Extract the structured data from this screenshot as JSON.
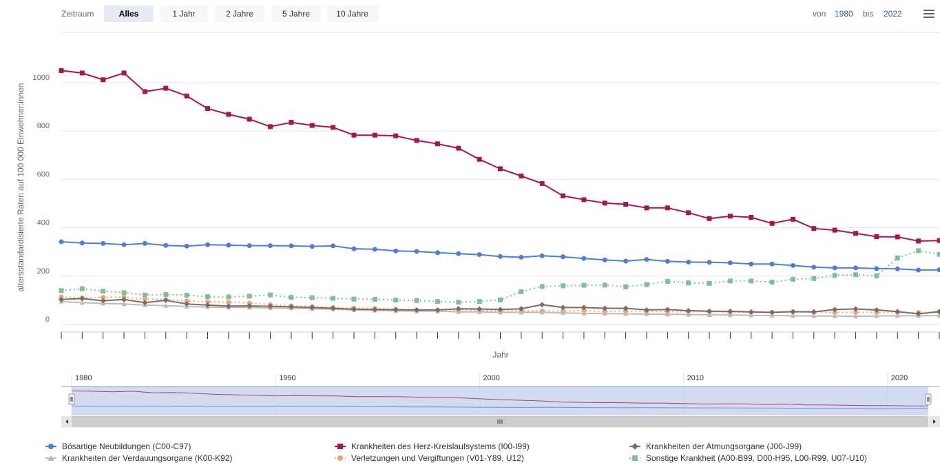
{
  "zoom": {
    "label": "Zeitraum",
    "buttons": [
      "Alles",
      "1 Jahr",
      "2 Jahre",
      "5 Jahre",
      "10 Jahre"
    ],
    "active": "Alles"
  },
  "range": {
    "from_label": "von",
    "from_value": "1980",
    "to_label": "bis",
    "to_value": "2022"
  },
  "colors": {
    "bn": "#4a7fd9",
    "hk": "#a8164a",
    "at": "#7f6a62",
    "vd": "#bbbbbb",
    "vv": "#f0a46b",
    "so": "#7fbf9a",
    "navigator_fill": "#c4cfeb",
    "navigator_border": "#8fa1d3"
  },
  "chart_data": {
    "type": "line",
    "xlabel": "Jahr",
    "ylabel": "altersstandardisierte Raten auf 100 000 Einwohner:innen",
    "ylim": [
      0,
      1100
    ],
    "yticks": [
      0,
      200,
      400,
      600,
      800,
      1000
    ],
    "xlim": [
      1980,
      2022
    ],
    "navigator_ticks": [
      1980,
      1990,
      2000,
      2010,
      2020
    ],
    "legend_position": "bottom",
    "x": [
      1980,
      1981,
      1982,
      1983,
      1984,
      1985,
      1986,
      1987,
      1988,
      1989,
      1990,
      1991,
      1992,
      1993,
      1994,
      1995,
      1996,
      1997,
      1998,
      1999,
      2000,
      2001,
      2002,
      2003,
      2004,
      2005,
      2006,
      2007,
      2008,
      2009,
      2010,
      2011,
      2012,
      2013,
      2014,
      2015,
      2016,
      2017,
      2018,
      2019,
      2020,
      2021,
      2022
    ],
    "series": [
      {
        "key": "bn",
        "name": "Bösartige Neubildungen (C00-C97)",
        "marker": "circle",
        "dash": "solid",
        "values": [
          342,
          337,
          335,
          330,
          335,
          327,
          324,
          330,
          328,
          326,
          326,
          325,
          323,
          325,
          313,
          311,
          304,
          302,
          297,
          293,
          289,
          281,
          278,
          284,
          280,
          273,
          267,
          262,
          269,
          261,
          258,
          257,
          255,
          250,
          250,
          244,
          237,
          234,
          234,
          231,
          230,
          225,
          226
        ]
      },
      {
        "key": "hk",
        "name": "Krankheiten des Herz-Kreislaufsystems (I00-I99)",
        "marker": "square",
        "dash": "solid",
        "values": [
          1050,
          1040,
          1012,
          1040,
          963,
          977,
          945,
          893,
          869,
          849,
          818,
          836,
          823,
          815,
          783,
          783,
          780,
          761,
          747,
          729,
          683,
          644,
          614,
          583,
          532,
          516,
          502,
          497,
          482,
          482,
          462,
          438,
          448,
          443,
          418,
          435,
          397,
          390,
          377,
          363,
          362,
          345,
          347
        ]
      },
      {
        "key": "at",
        "name": "Krankheiten der Atmungsorgane (J00-J99)",
        "marker": "diamond",
        "dash": "solid",
        "values": [
          103,
          107,
          98,
          103,
          90,
          100,
          85,
          80,
          76,
          77,
          75,
          73,
          70,
          67,
          63,
          62,
          61,
          60,
          60,
          65,
          64,
          62,
          65,
          82,
          70,
          70,
          67,
          67,
          60,
          62,
          57,
          55,
          54,
          52,
          50,
          53,
          52,
          62,
          64,
          60,
          53,
          44,
          53
        ]
      },
      {
        "key": "vd",
        "name": "Krankheiten der Verdauungsorgane (K00-K92)",
        "marker": "triangle",
        "dash": "solid",
        "values": [
          95,
          90,
          87,
          85,
          80,
          78,
          74,
          72,
          70,
          70,
          68,
          67,
          65,
          63,
          60,
          58,
          56,
          55,
          55,
          52,
          52,
          50,
          50,
          50,
          48,
          46,
          45,
          44,
          43,
          42,
          41,
          40,
          39,
          38,
          37,
          36,
          35,
          35,
          34,
          35,
          36,
          36,
          37
        ]
      },
      {
        "key": "vv",
        "name": "Verletzungen und Vergiftungen (V01-Y89, U12)",
        "marker": "circle",
        "dash": "dot",
        "values": [
          114,
          110,
          112,
          113,
          105,
          103,
          97,
          94,
          92,
          88,
          82,
          77,
          74,
          70,
          68,
          66,
          63,
          60,
          59,
          60,
          58,
          56,
          56,
          56,
          55,
          57,
          54,
          55,
          54,
          53,
          53,
          52,
          51,
          50,
          50,
          51,
          50,
          50,
          50,
          50,
          50,
          49,
          52
        ]
      },
      {
        "key": "so",
        "name": "Sonstige Krankheit (A00-B99, D00-H95, L00-R99, U07-U10)",
        "marker": "square",
        "dash": "dot",
        "values": [
          140,
          148,
          138,
          132,
          122,
          124,
          121,
          115,
          114,
          117,
          122,
          112,
          111,
          108,
          105,
          104,
          101,
          99,
          95,
          92,
          95,
          102,
          136,
          157,
          160,
          162,
          163,
          156,
          165,
          178,
          172,
          170,
          180,
          180,
          175,
          187,
          190,
          203,
          206,
          201,
          275,
          305,
          290
        ]
      }
    ]
  }
}
